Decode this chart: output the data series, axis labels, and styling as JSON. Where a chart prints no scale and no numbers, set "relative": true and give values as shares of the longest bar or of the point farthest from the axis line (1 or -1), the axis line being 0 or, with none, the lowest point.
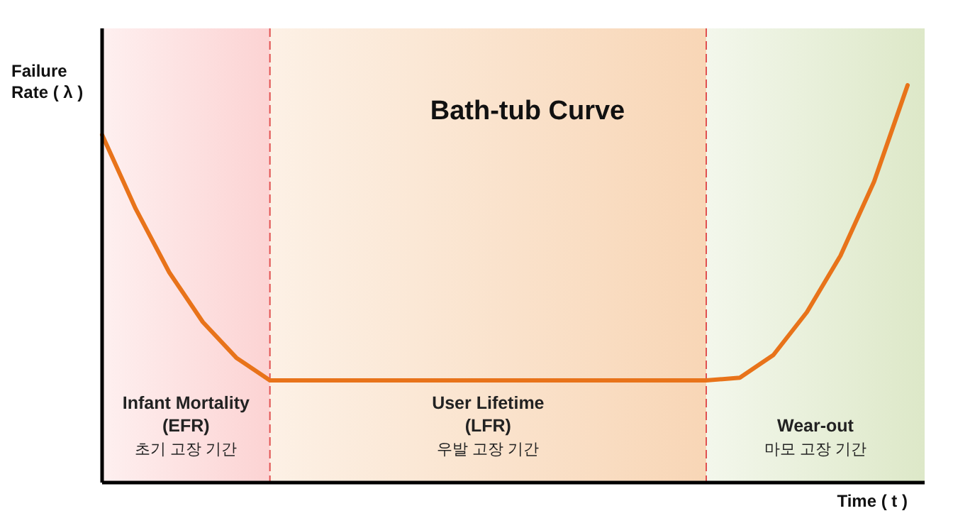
{
  "chart_data": {
    "type": "line",
    "title": "Bath-tub Curve",
    "xlabel": "Time ( t )",
    "ylabel": "Failure\nRate ( λ )",
    "relative": true,
    "categories": [
      null,
      null,
      null,
      null,
      null,
      null,
      null,
      null,
      null,
      null,
      null,
      null,
      null,
      null,
      null,
      null,
      null,
      null,
      null,
      null,
      null,
      null,
      null,
      null,
      null
    ],
    "series": [
      {
        "color": "#e8731a",
        "values": [
          0.875,
          0.689,
          0.529,
          0.404,
          0.314,
          0.257,
          0.257,
          0.257,
          0.257,
          0.257,
          0.257,
          0.257,
          0.257,
          0.257,
          0.257,
          0.257,
          0.257,
          0.257,
          0.257,
          0.264,
          0.321,
          0.429,
          0.571,
          0.757,
          1
        ]
      }
    ],
    "annotations": [
      "Infant Mortality\n(EFR)\n초기 고장 기간",
      "User Lifetime\n(LFR)\n우발 고장 기간",
      "Wear-out\n마모 고장 기간"
    ],
    "marker": "none",
    "line_style": "solid"
  }
}
